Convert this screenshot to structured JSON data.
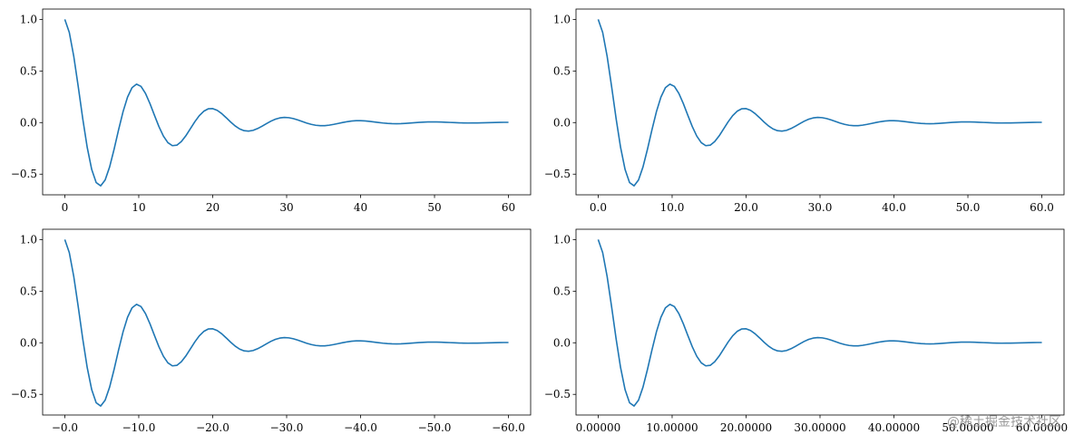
{
  "watermark": "@稀土掘金技术社区",
  "chart_data": [
    {
      "type": "line",
      "xlim": [
        -3,
        63
      ],
      "ylim": [
        -0.7,
        1.1
      ],
      "yticks": [
        1.0,
        0.5,
        0.0,
        -0.5
      ],
      "ytick_labels": [
        "1.0",
        "0.5",
        "0.0",
        "−0.5"
      ],
      "xticks": [
        0,
        10,
        20,
        30,
        40,
        50,
        60
      ],
      "xtick_labels": [
        "0",
        "10",
        "20",
        "30",
        "40",
        "50",
        "60"
      ],
      "series": [
        {
          "function": "cos(0.628*x)*exp(-0.1*x)",
          "x_range": [
            0,
            60
          ],
          "samples": 100,
          "color": "#1f77b4"
        }
      ]
    },
    {
      "type": "line",
      "xlim": [
        -3,
        63
      ],
      "ylim": [
        -0.7,
        1.1
      ],
      "yticks": [
        1.0,
        0.5,
        0.0,
        -0.5
      ],
      "ytick_labels": [
        "1.0",
        "0.5",
        "0.0",
        "−0.5"
      ],
      "xticks": [
        0,
        10,
        20,
        30,
        40,
        50,
        60
      ],
      "xtick_labels": [
        "0.0",
        "10.0",
        "20.0",
        "30.0",
        "40.0",
        "50.0",
        "60.0"
      ],
      "series": [
        {
          "function": "cos(0.628*x)*exp(-0.1*x)",
          "x_range": [
            0,
            60
          ],
          "samples": 100,
          "color": "#1f77b4"
        }
      ]
    },
    {
      "type": "line",
      "xlim": [
        -3,
        63
      ],
      "ylim": [
        -0.7,
        1.1
      ],
      "yticks": [
        1.0,
        0.5,
        0.0,
        -0.5
      ],
      "ytick_labels": [
        "1.0",
        "0.5",
        "0.0",
        "−0.5"
      ],
      "xticks": [
        0,
        10,
        20,
        30,
        40,
        50,
        60
      ],
      "xtick_labels": [
        "−0.0",
        "−10.0",
        "−20.0",
        "−30.0",
        "−40.0",
        "−50.0",
        "−60.0"
      ],
      "series": [
        {
          "function": "cos(0.628*x)*exp(-0.1*x)",
          "x_range": [
            0,
            60
          ],
          "samples": 100,
          "color": "#1f77b4"
        }
      ]
    },
    {
      "type": "line",
      "xlim": [
        -3,
        63
      ],
      "ylim": [
        -0.7,
        1.1
      ],
      "yticks": [
        1.0,
        0.5,
        0.0,
        -0.5
      ],
      "ytick_labels": [
        "1.0",
        "0.5",
        "0.0",
        "−0.5"
      ],
      "xticks": [
        0,
        10,
        20,
        30,
        40,
        50,
        60
      ],
      "xtick_labels": [
        "0.00000",
        "10.00000",
        "20.00000",
        "30.00000",
        "40.00000",
        "50.00000",
        "60.00000"
      ],
      "series": [
        {
          "function": "cos(0.628*x)*exp(-0.1*x)",
          "x_range": [
            0,
            60
          ],
          "samples": 100,
          "color": "#1f77b4"
        }
      ]
    }
  ]
}
